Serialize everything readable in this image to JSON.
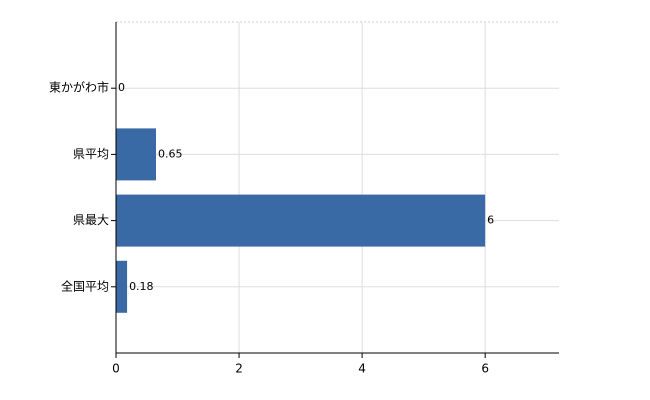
{
  "chart_data": {
    "type": "bar",
    "orientation": "horizontal",
    "categories": [
      "東かがわ市",
      "県平均",
      "県最大",
      "全国平均"
    ],
    "values": [
      0,
      0.65,
      6,
      0.18
    ],
    "color": "#3a6aa5",
    "xlim": [
      0,
      7.2
    ],
    "xticks": [
      0,
      2,
      4,
      6
    ],
    "grid": true
  }
}
